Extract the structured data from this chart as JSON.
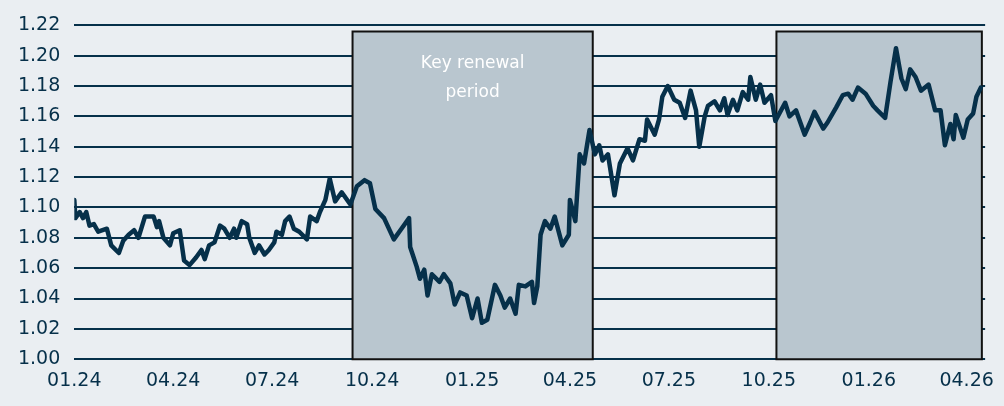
{
  "chart_data": {
    "type": "line",
    "legend": false,
    "grid": "y",
    "marker": "none",
    "line_style": "solid",
    "xlim": [
      "2024-01-01",
      "2026-04-18"
    ],
    "xticks": [
      {
        "value": "2024-01",
        "label": "01.24"
      },
      {
        "value": "2024-04",
        "label": "04.24"
      },
      {
        "value": "2024-07",
        "label": "07.24"
      },
      {
        "value": "2024-10",
        "label": "10.24"
      },
      {
        "value": "2025-01",
        "label": "01.25"
      },
      {
        "value": "2025-04",
        "label": "04.25"
      },
      {
        "value": "2025-07",
        "label": "07.25"
      },
      {
        "value": "2025-10",
        "label": "10.25"
      },
      {
        "value": "2026-01",
        "label": "01.26"
      },
      {
        "value": "2026-04",
        "label": "04.26"
      }
    ],
    "ylim": [
      1.0,
      1.22
    ],
    "yticks": [
      {
        "value": 1.0,
        "label": "1.00"
      },
      1.02,
      1.04,
      1.06,
      1.08,
      {
        "value": 1.1,
        "label": "1.10"
      },
      1.12,
      1.14,
      1.16,
      1.18,
      {
        "value": 1.2,
        "label": "1.20"
      },
      1.22
    ],
    "bands": [
      {
        "axis": "x",
        "from": "2024-09-13",
        "to": "2025-04-22",
        "label": "Key renewal period",
        "color": "#b9c6cf"
      },
      {
        "axis": "x",
        "from": "2025-10-08",
        "to": "2026-04-15",
        "color": "#b9c6cf"
      }
    ],
    "series": [
      {
        "color": "#06304a",
        "x": [
          "2024-01-01",
          "2024-01-02",
          "2024-01-06",
          "2024-01-09",
          "2024-01-12",
          "2024-01-15",
          "2024-01-19",
          "2024-01-23",
          "2024-01-31",
          "2024-02-04",
          "2024-02-11",
          "2024-02-15",
          "2024-02-20",
          "2024-02-25",
          "2024-02-29",
          "2024-03-06",
          "2024-03-14",
          "2024-03-17",
          "2024-03-19",
          "2024-03-23",
          "2024-03-29",
          "2024-04-01",
          "2024-04-07",
          "2024-04-11",
          "2024-04-16",
          "2024-04-22",
          "2024-04-27",
          "2024-04-30",
          "2024-05-04",
          "2024-05-09",
          "2024-05-14",
          "2024-05-18",
          "2024-05-23",
          "2024-05-27",
          "2024-05-29",
          "2024-06-03",
          "2024-06-08",
          "2024-06-10",
          "2024-06-15",
          "2024-06-19",
          "2024-06-24",
          "2024-06-28",
          "2024-07-03",
          "2024-07-05",
          "2024-07-10",
          "2024-07-13",
          "2024-07-17",
          "2024-07-21",
          "2024-07-26",
          "2024-08-02",
          "2024-08-05",
          "2024-08-11",
          "2024-08-14",
          "2024-08-19",
          "2024-08-23",
          "2024-08-28",
          "2024-09-03",
          "2024-09-11",
          "2024-09-17",
          "2024-09-24",
          "2024-09-29",
          "2024-10-04",
          "2024-10-12",
          "2024-10-21",
          "2024-10-28",
          "2024-11-04",
          "2024-11-05",
          "2024-11-11",
          "2024-11-14",
          "2024-11-18",
          "2024-11-21",
          "2024-11-25",
          "2024-12-02",
          "2024-12-06",
          "2024-12-12",
          "2024-12-16",
          "2024-12-21",
          "2024-12-27",
          "2025-01-01",
          "2025-01-06",
          "2025-01-10",
          "2025-01-15",
          "2025-01-22",
          "2025-01-27",
          "2025-01-31",
          "2025-02-05",
          "2025-02-10",
          "2025-02-13",
          "2025-02-19",
          "2025-02-25",
          "2025-02-27",
          "2025-03-02",
          "2025-03-05",
          "2025-03-09",
          "2025-03-14",
          "2025-03-18",
          "2025-03-25",
          "2025-03-31",
          "2025-04-01",
          "2025-04-06",
          "2025-04-10",
          "2025-04-14",
          "2025-04-19",
          "2025-04-24",
          "2025-04-28",
          "2025-05-01",
          "2025-05-06",
          "2025-05-12",
          "2025-05-17",
          "2025-05-24",
          "2025-05-29",
          "2025-06-04",
          "2025-06-09",
          "2025-06-11",
          "2025-06-18",
          "2025-06-22",
          "2025-06-25",
          "2025-06-30",
          "2025-07-06",
          "2025-07-11",
          "2025-07-16",
          "2025-07-21",
          "2025-07-26",
          "2025-07-29",
          "2025-08-03",
          "2025-08-06",
          "2025-08-12",
          "2025-08-17",
          "2025-08-21",
          "2025-08-24",
          "2025-08-29",
          "2025-09-02",
          "2025-09-07",
          "2025-09-12",
          "2025-09-14",
          "2025-09-19",
          "2025-09-23",
          "2025-09-27",
          "2025-10-03",
          "2025-10-07",
          "2025-10-16",
          "2025-10-20",
          "2025-10-26",
          "2025-11-03",
          "2025-11-08",
          "2025-11-12",
          "2025-11-20",
          "2025-11-24",
          "2025-12-02",
          "2025-12-08",
          "2025-12-13",
          "2025-12-17",
          "2025-12-22",
          "2025-12-29",
          "2026-01-05",
          "2026-01-09",
          "2026-01-16",
          "2026-01-21",
          "2026-01-26",
          "2026-01-31",
          "2026-02-04",
          "2026-02-08",
          "2026-02-13",
          "2026-02-18",
          "2026-02-25",
          "2026-03-03",
          "2026-03-08",
          "2026-03-12",
          "2026-03-17",
          "2026-03-20",
          "2026-03-22",
          "2026-03-29",
          "2026-04-02",
          "2026-04-07",
          "2026-04-10",
          "2026-04-14"
        ],
        "values": [
          1.105,
          1.093,
          1.097,
          1.093,
          1.097,
          1.088,
          1.089,
          1.084,
          1.086,
          1.075,
          1.07,
          1.078,
          1.082,
          1.085,
          1.08,
          1.094,
          1.094,
          1.087,
          1.091,
          1.08,
          1.075,
          1.083,
          1.085,
          1.065,
          1.062,
          1.067,
          1.072,
          1.066,
          1.075,
          1.077,
          1.088,
          1.086,
          1.08,
          1.086,
          1.08,
          1.091,
          1.089,
          1.08,
          1.07,
          1.075,
          1.069,
          1.072,
          1.077,
          1.084,
          1.082,
          1.091,
          1.094,
          1.086,
          1.084,
          1.079,
          1.094,
          1.091,
          1.097,
          1.105,
          1.119,
          1.104,
          1.11,
          1.102,
          1.114,
          1.118,
          1.116,
          1.099,
          1.093,
          1.079,
          1.086,
          1.093,
          1.074,
          1.061,
          1.053,
          1.059,
          1.042,
          1.056,
          1.051,
          1.056,
          1.05,
          1.036,
          1.044,
          1.042,
          1.027,
          1.04,
          1.024,
          1.026,
          1.049,
          1.042,
          1.034,
          1.04,
          1.03,
          1.049,
          1.048,
          1.051,
          1.037,
          1.048,
          1.082,
          1.091,
          1.086,
          1.094,
          1.075,
          1.082,
          1.105,
          1.091,
          1.135,
          1.129,
          1.151,
          1.135,
          1.141,
          1.131,
          1.135,
          1.108,
          1.129,
          1.139,
          1.131,
          1.145,
          1.144,
          1.158,
          1.148,
          1.158,
          1.173,
          1.18,
          1.171,
          1.169,
          1.159,
          1.177,
          1.164,
          1.14,
          1.16,
          1.167,
          1.17,
          1.164,
          1.172,
          1.161,
          1.171,
          1.164,
          1.176,
          1.171,
          1.186,
          1.171,
          1.181,
          1.169,
          1.174,
          1.157,
          1.169,
          1.16,
          1.164,
          1.148,
          1.156,
          1.163,
          1.152,
          1.156,
          1.166,
          1.174,
          1.175,
          1.171,
          1.179,
          1.175,
          1.167,
          1.164,
          1.159,
          1.183,
          1.205,
          1.185,
          1.178,
          1.191,
          1.186,
          1.177,
          1.181,
          1.164,
          1.164,
          1.141,
          1.155,
          1.145,
          1.161,
          1.146,
          1.158,
          1.162,
          1.173,
          1.179
        ]
      }
    ]
  }
}
